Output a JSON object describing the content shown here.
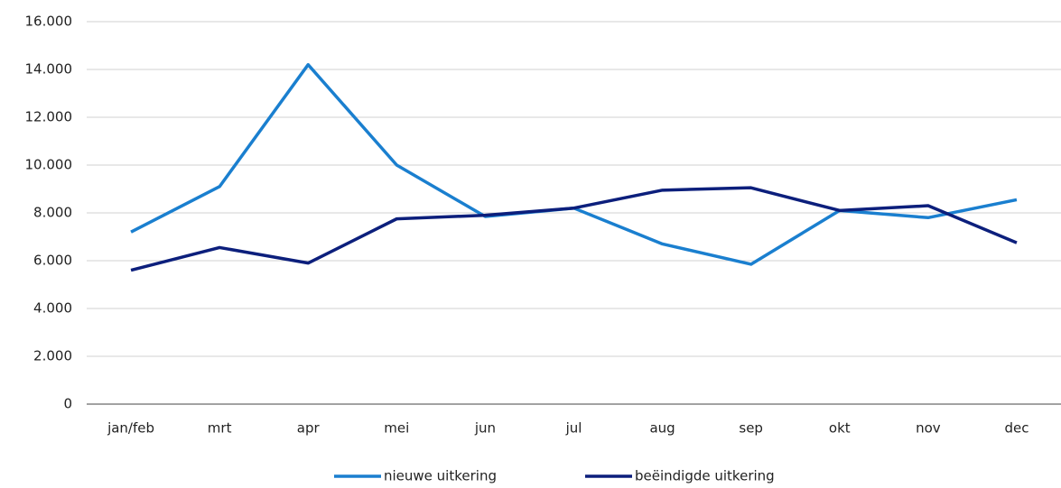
{
  "chart_data": {
    "type": "line",
    "categories": [
      "jan/feb",
      "mrt",
      "apr",
      "mei",
      "jun",
      "jul",
      "aug",
      "sep",
      "okt",
      "nov",
      "dec"
    ],
    "series": [
      {
        "name": "nieuwe uitkering",
        "color": "#1a7fcf",
        "values": [
          7200,
          9100,
          14200,
          10000,
          7850,
          8200,
          6700,
          5850,
          8100,
          7800,
          8550
        ]
      },
      {
        "name": "beëindigde uitkering",
        "color": "#0c1f7c",
        "values": [
          5600,
          6550,
          5900,
          7750,
          7900,
          8200,
          8950,
          9050,
          8100,
          8300,
          6750
        ]
      }
    ],
    "ylim": [
      0,
      16000
    ],
    "yticks": [
      0,
      {
        "value": 2000,
        "label": "2.000"
      },
      {
        "value": 4000,
        "label": "4.000"
      },
      {
        "value": 6000,
        "label": "6.000"
      },
      {
        "value": 8000,
        "label": "8.000"
      },
      {
        "value": 10000,
        "label": "10.000"
      },
      {
        "value": 12000,
        "label": "12.000"
      },
      {
        "value": 14000,
        "label": "14.000"
      },
      {
        "value": 16000,
        "label": "16.000"
      }
    ],
    "grid": true,
    "legend": "bottom"
  }
}
